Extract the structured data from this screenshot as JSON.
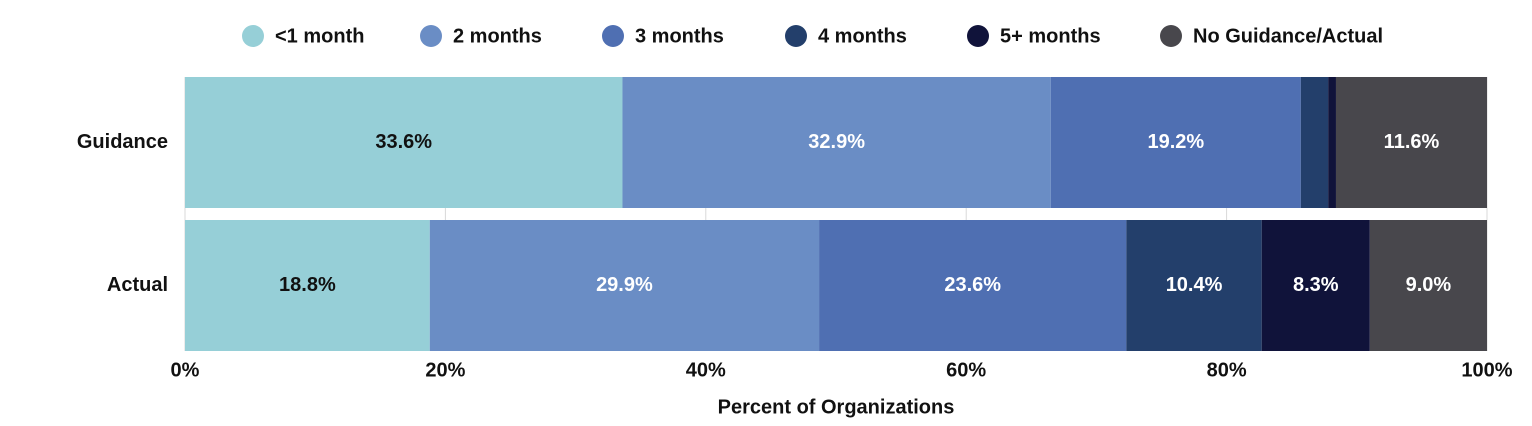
{
  "chart_data": {
    "type": "stacked-bar-horizontal",
    "categories": [
      "Guidance",
      "Actual"
    ],
    "series": [
      {
        "name": "<1 month",
        "color": "#96cfd7",
        "label_color": "#111111",
        "values": [
          33.6,
          18.8
        ],
        "value_labels": [
          "33.6%",
          "18.8%"
        ]
      },
      {
        "name": "2 months",
        "color": "#6a8dc5",
        "label_color": "#ffffff",
        "values": [
          32.9,
          29.9
        ],
        "value_labels": [
          "32.9%",
          "29.9%"
        ]
      },
      {
        "name": "3 months",
        "color": "#4f6fb2",
        "label_color": "#ffffff",
        "values": [
          19.2,
          23.6
        ],
        "value_labels": [
          "19.2%",
          "23.6%"
        ]
      },
      {
        "name": "4 months",
        "color": "#233f6b",
        "label_color": "#ffffff",
        "values": [
          2.1,
          10.4
        ],
        "value_labels": [
          null,
          "10.4%"
        ]
      },
      {
        "name": "5+ months",
        "color": "#10133a",
        "label_color": "#ffffff",
        "values": [
          0.6,
          8.3
        ],
        "value_labels": [
          null,
          "8.3%"
        ]
      },
      {
        "name": "No Guidance/Actual",
        "color": "#48474c",
        "label_color": "#ffffff",
        "values": [
          11.6,
          9.0
        ],
        "value_labels": [
          "11.6%",
          "9.0%"
        ]
      }
    ],
    "xlabel": "Percent of Organizations",
    "xlim": [
      0,
      100
    ],
    "xticks": [
      {
        "value": 0,
        "label": "0%"
      },
      {
        "value": 20,
        "label": "20%"
      },
      {
        "value": 40,
        "label": "40%"
      },
      {
        "value": 60,
        "label": "60%"
      },
      {
        "value": 80,
        "label": "80%"
      },
      {
        "value": 100,
        "label": "100%"
      }
    ],
    "grid": true,
    "legend": "top"
  }
}
